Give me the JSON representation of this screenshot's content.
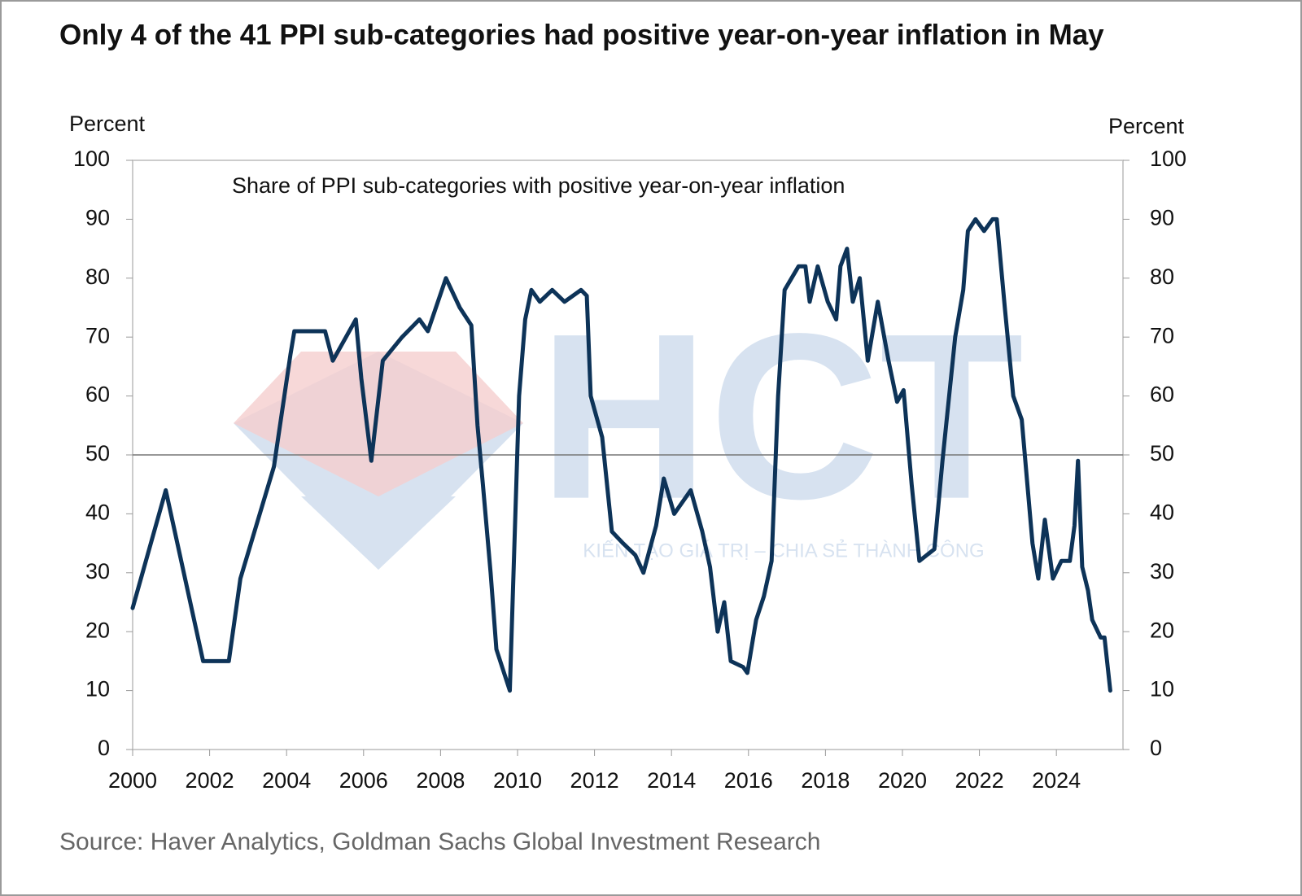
{
  "chart_data": {
    "type": "line",
    "title": "Only 4 of the 41 PPI sub-categories had positive year-on-year inflation in May",
    "annotation": "Share of PPI sub-categories with positive year-on-year inflation",
    "y_label": "Percent",
    "y2_label": "Percent",
    "source": "Source: Haver Analytics, Goldman Sachs Global Investment Research",
    "watermark": {
      "logo": "HCT",
      "tagline": "KIẾN TẠO GIÁ TRỊ – CHIA SẺ THÀNH CÔNG"
    },
    "x": [
      2000.0,
      2000.86,
      2001.83,
      2002.3,
      2002.5,
      2002.8,
      2003.67,
      2004.1,
      2004.2,
      2005.0,
      2005.2,
      2005.8,
      2005.94,
      2006.2,
      2006.5,
      2007.0,
      2007.45,
      2007.67,
      2008.14,
      2008.5,
      2008.8,
      2008.96,
      2009.1,
      2009.3,
      2009.45,
      2009.8,
      2010.04,
      2010.2,
      2010.36,
      2010.58,
      2010.9,
      2011.22,
      2011.65,
      2011.8,
      2011.9,
      2012.2,
      2012.45,
      2012.74,
      2013.06,
      2013.27,
      2013.6,
      2013.8,
      2014.07,
      2014.5,
      2014.8,
      2015.0,
      2015.2,
      2015.37,
      2015.54,
      2015.86,
      2015.97,
      2016.2,
      2016.4,
      2016.6,
      2016.77,
      2016.94,
      2017.3,
      2017.48,
      2017.59,
      2017.8,
      2018.06,
      2018.28,
      2018.39,
      2018.56,
      2018.71,
      2018.89,
      2019.1,
      2019.36,
      2019.64,
      2019.86,
      2020.03,
      2020.24,
      2020.44,
      2020.83,
      2021.04,
      2021.37,
      2021.58,
      2021.7,
      2021.9,
      2022.12,
      2022.34,
      2022.45,
      2022.66,
      2022.88,
      2023.1,
      2023.38,
      2023.53,
      2023.7,
      2023.91,
      2024.13,
      2024.35,
      2024.47,
      2024.56,
      2024.67,
      2024.82,
      2024.93,
      2025.15,
      2025.25,
      2025.4
    ],
    "series": [
      {
        "name": "Share of PPI sub-categories with positive year-on-year inflation",
        "color": "#0d3358",
        "values": [
          24,
          44,
          15,
          15,
          15,
          29,
          48,
          67,
          71,
          71,
          66,
          73,
          63,
          49,
          66,
          70,
          73,
          71,
          80,
          75,
          72,
          55,
          45,
          30,
          17,
          10,
          60,
          73,
          78,
          76,
          78,
          76,
          78,
          77,
          60,
          53,
          37,
          35,
          33,
          30,
          38,
          46,
          40,
          44,
          37,
          31,
          20,
          25,
          15,
          14,
          13,
          22,
          26,
          32,
          60,
          78,
          82,
          82,
          76,
          82,
          76,
          73,
          82,
          85,
          76,
          80,
          66,
          76,
          66,
          59,
          61,
          45,
          32,
          34,
          49,
          70,
          78,
          88,
          90,
          88,
          90,
          90,
          75,
          60,
          56,
          35,
          29,
          39,
          29,
          32,
          32,
          38,
          49,
          31,
          27,
          22,
          19,
          19,
          10
        ]
      }
    ],
    "xlim": [
      2000,
      2025.73
    ],
    "xticks": [
      2000,
      2002,
      2004,
      2006,
      2008,
      2010,
      2012,
      2014,
      2016,
      2018,
      2020,
      2022,
      2024
    ],
    "ylim": [
      0,
      100
    ],
    "yticks": [
      0,
      10,
      20,
      30,
      40,
      50,
      60,
      70,
      80,
      90,
      100
    ],
    "y2lim": [
      0,
      100
    ],
    "y2ticks": [
      0,
      10,
      20,
      30,
      40,
      50,
      60,
      70,
      80,
      90,
      100
    ],
    "reference_line": 50
  }
}
